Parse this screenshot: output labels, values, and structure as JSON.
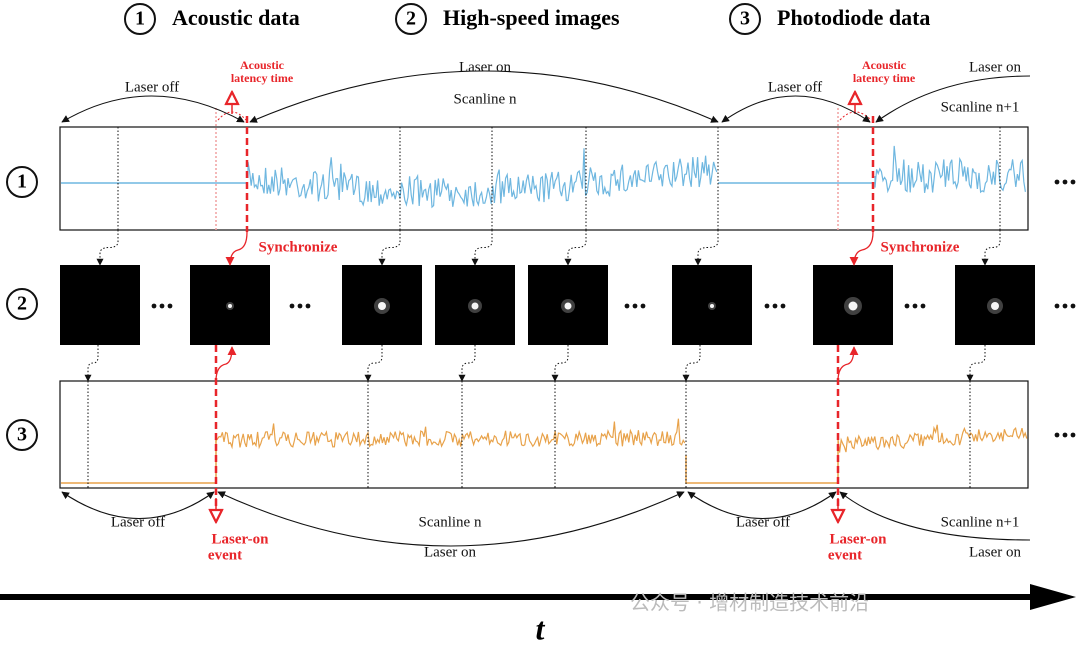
{
  "header": {
    "items": [
      {
        "number": "1",
        "label": "Acoustic data"
      },
      {
        "number": "2",
        "label": "High-speed images"
      },
      {
        "number": "3",
        "label": "Photodiode data"
      }
    ]
  },
  "rows": [
    "1",
    "2",
    "3"
  ],
  "top_annotations": [
    {
      "laser_off": "Laser off",
      "latency": [
        "Acoustic",
        "latency time"
      ],
      "laser_on": "Laser on",
      "scanline": "Scanline n"
    },
    {
      "laser_off": "Laser off",
      "latency": [
        "Acoustic",
        "latency time"
      ],
      "laser_on": "Laser on",
      "scanline": "Scanline n+1"
    }
  ],
  "synchronize": [
    "Synchronize",
    "Synchronize"
  ],
  "bottom_annotations": [
    {
      "laser_off": "Laser off",
      "event": [
        "Laser-on",
        "event"
      ],
      "scanline": "Scanline n",
      "laser_on": "Laser on"
    },
    {
      "laser_off": "Laser off",
      "event": [
        "Laser-on",
        "event"
      ],
      "scanline": "Scanline n+1",
      "laser_on": "Laser on"
    }
  ],
  "time_axis": "t",
  "watermark": "公众号 · 增材制造技术前沿"
}
